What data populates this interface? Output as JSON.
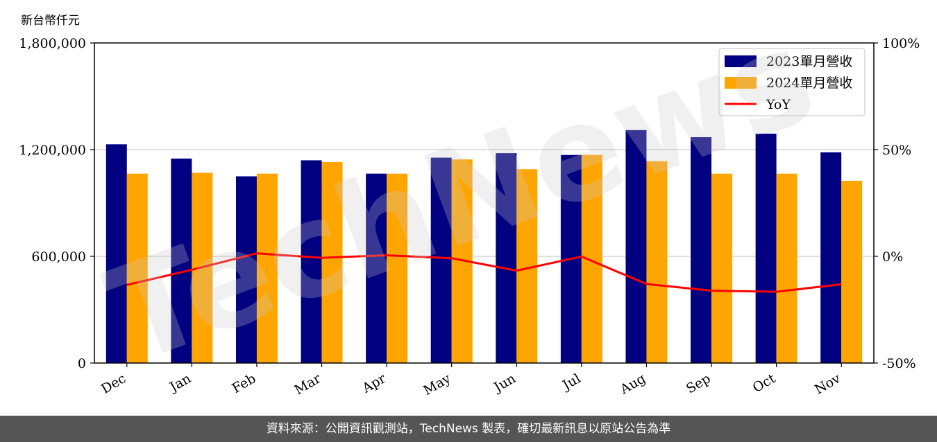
{
  "unit_label": "新台幣仟元",
  "footer_text": "資料來源：公開資訊觀測站，TechNews 製表，確切最新訊息以原站公告為準",
  "watermark_text": "TechNews",
  "colors": {
    "series_2023": "#000080",
    "series_2024": "#FFA500",
    "yoy": "#FF0000",
    "grid": "#CCCCCC",
    "footer_bg": "#555555"
  },
  "chart_data": {
    "type": "bar",
    "categories": [
      "Dec",
      "Jan",
      "Feb",
      "Mar",
      "Apr",
      "May",
      "Jun",
      "Jul",
      "Aug",
      "Sep",
      "Oct",
      "Nov"
    ],
    "series": [
      {
        "name": "2023單月營收",
        "values": [
          1230000,
          1150000,
          1050000,
          1140000,
          1065000,
          1155000,
          1180000,
          1170000,
          1310000,
          1270000,
          1290000,
          1185000
        ]
      },
      {
        "name": "2024單月營收",
        "values": [
          1065000,
          1070000,
          1065000,
          1130000,
          1065000,
          1145000,
          1090000,
          1170000,
          1135000,
          1065000,
          1065000,
          1025000
        ]
      }
    ],
    "line_series": {
      "name": "YoY",
      "axis": "right",
      "values": [
        -13.4,
        -6.3,
        1.4,
        -0.7,
        0.5,
        -0.9,
        -6.7,
        -0.1,
        -13.0,
        -16.1,
        -16.6,
        -13.1
      ]
    },
    "ylim": [
      0,
      1800000
    ],
    "yticks": [
      "0",
      "600,000",
      "1,200,000",
      "1,800,000"
    ],
    "y2lim": [
      -50,
      100
    ],
    "y2ticks": [
      "-50%",
      "0%",
      "50%",
      "100%"
    ],
    "grid": "horizontal",
    "legend_position": "top-right"
  }
}
